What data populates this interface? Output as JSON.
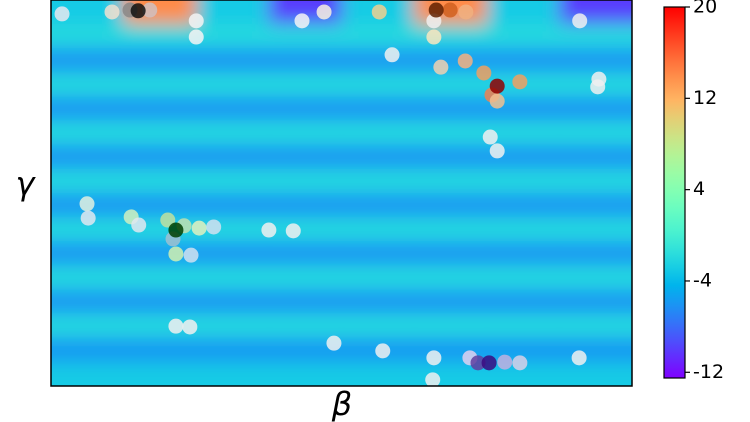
{
  "chart_data": {
    "type": "heatmap",
    "xlabel": "β",
    "ylabel": "γ",
    "z": [
      [
        -3,
        14,
        -3,
        -10,
        -3,
        14,
        -3,
        -10
      ],
      [
        -2,
        -2,
        -2,
        -2,
        -2,
        -2,
        -2,
        -2
      ],
      [
        -6,
        -6,
        -6,
        -6,
        -6,
        -6,
        -6,
        -6
      ],
      [
        -2,
        -2,
        -2,
        -2,
        -2,
        -2,
        -2,
        -2
      ],
      [
        -6,
        -6,
        -6,
        -6,
        -6,
        -6,
        -6,
        -6
      ],
      [
        -2,
        -2,
        -2,
        -2,
        -2,
        -2,
        -2,
        -2
      ],
      [
        -6,
        -6,
        -6,
        -6,
        -6,
        -6,
        -6,
        -6
      ],
      [
        -2,
        -2,
        -2,
        -2,
        -2,
        -2,
        -2,
        -2
      ],
      [
        -6,
        -6,
        -6,
        -6,
        -6,
        -6,
        -6,
        -6
      ],
      [
        -2,
        -2,
        -2,
        -2,
        -2,
        -2,
        -2,
        -2
      ],
      [
        -6,
        -6,
        -6,
        -6,
        -6,
        -6,
        -6,
        -6
      ],
      [
        -2,
        -2,
        -2,
        -2,
        -2,
        -2,
        -2,
        -2
      ],
      [
        -6,
        -6,
        -6,
        -6,
        -6,
        -6,
        -6,
        -6
      ],
      [
        -2,
        -2,
        -2,
        -2,
        -2,
        -2,
        -2,
        -2
      ],
      [
        -6,
        -6,
        -6,
        -6,
        -6,
        -6,
        -6,
        -6
      ],
      [
        -3,
        -3,
        -3,
        -3,
        -3,
        -3,
        -3,
        -3
      ]
    ],
    "clim": [
      -12.5,
      20
    ],
    "cbar_ticks": [
      20,
      12,
      4,
      -4,
      -12
    ],
    "xlim": [
      0,
      1
    ],
    "ylim": [
      0,
      1
    ],
    "x": [
      0.019,
      0.105,
      0.136,
      0.17,
      0.25,
      0.25,
      0.432,
      0.47,
      0.565,
      0.687,
      0.714,
      0.659,
      0.659,
      0.587,
      0.671,
      0.713,
      0.745,
      0.759,
      0.807,
      0.768,
      0.943,
      0.941,
      0.91,
      0.756,
      0.768,
      0.062,
      0.064,
      0.138,
      0.151,
      0.201,
      0.229,
      0.255,
      0.28,
      0.21,
      0.215,
      0.241,
      0.375,
      0.417,
      0.215,
      0.239,
      0.487,
      0.571,
      0.659,
      0.721,
      0.781,
      0.807,
      0.909,
      0.657,
      0.15,
      0.663,
      0.768,
      0.215,
      0.735,
      0.754
    ],
    "y": [
      0.964,
      0.969,
      0.974,
      0.974,
      0.946,
      0.904,
      0.946,
      0.969,
      0.969,
      0.974,
      0.969,
      0.946,
      0.904,
      0.858,
      0.826,
      0.842,
      0.811,
      0.754,
      0.788,
      0.738,
      0.795,
      0.775,
      0.946,
      0.645,
      0.609,
      0.472,
      0.435,
      0.438,
      0.417,
      0.43,
      0.415,
      0.409,
      0.412,
      0.381,
      0.342,
      0.339,
      0.404,
      0.402,
      0.155,
      0.153,
      0.111,
      0.091,
      0.073,
      0.073,
      0.062,
      0.06,
      0.073,
      0.016,
      0.972,
      0.974,
      0.777,
      0.404,
      0.06,
      0.06
    ],
    "colors": [
      "#e8e8f0",
      "#f0e0d0",
      "#888888",
      "#d0c0c0",
      "#f5f5f5",
      "#f5f5f5",
      "#f5f5f5",
      "#f8f0e0",
      "#f0d090",
      "#d06020",
      "#f0b080",
      "#f0f0f0",
      "#f8e8c0",
      "#f0f0f0",
      "#f0d0b0",
      "#f4b080",
      "#f0a060",
      "#f08050",
      "#f0a060",
      "#f0c090",
      "#f0f0f0",
      "#f0f0f0",
      "#f0f0f0",
      "#f0f0f0",
      "#f0f0f0",
      "#e0f0e0",
      "#e0e8f0",
      "#d0f0c0",
      "#e0e8f0",
      "#c0e0a0",
      "#c0e0b0",
      "#e0f0c0",
      "#d0e0f0",
      "#a0c0d0",
      "#d0f0b0",
      "#d0e0f0",
      "#f0f0f0",
      "#f0f0f0",
      "#f0f0f0",
      "#f0f0f0",
      "#f0f0f0",
      "#f0f0f0",
      "#f0f0f0",
      "#e0d0f0",
      "#c0b0e0",
      "#d8d0e8",
      "#f0f0f0",
      "#f0f0f0",
      "#111111",
      "#602000",
      "#900000",
      "#004000",
      "#6040a0",
      "#3a0a80"
    ]
  }
}
